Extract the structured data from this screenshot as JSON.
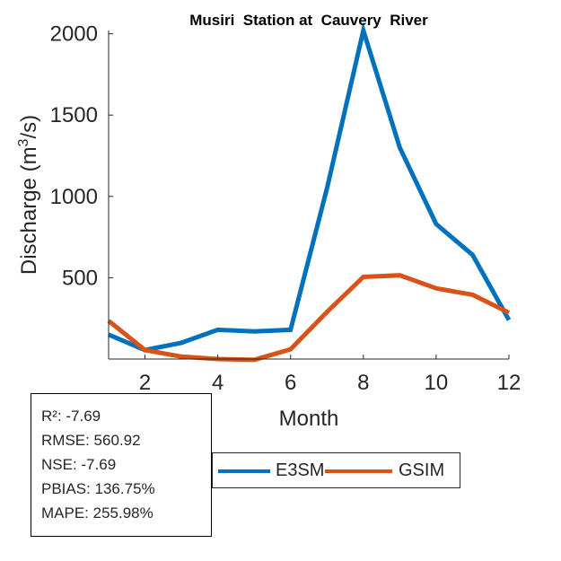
{
  "chart_data": {
    "type": "line",
    "title": "Musiri  Station at  Cauvery  River",
    "xlabel": "Month",
    "ylabel_main": "Discharge (m",
    "ylabel_sup": "3",
    "ylabel_end": "/s)",
    "xlim": [
      1,
      12
    ],
    "ylim": [
      0,
      2020
    ],
    "x": [
      1,
      2,
      3,
      4,
      5,
      6,
      7,
      8,
      9,
      10,
      11,
      12
    ],
    "xticks": [
      2,
      4,
      6,
      8,
      10,
      12
    ],
    "xtick_labels": [
      "2",
      "4",
      "6",
      "8",
      "10",
      "12"
    ],
    "yticks": [
      500,
      1000,
      1500,
      2000
    ],
    "ytick_labels": [
      "500",
      "1000",
      "1500",
      "2000"
    ],
    "series": [
      {
        "name": "E3SM",
        "color": "#0072BD",
        "values": [
          150,
          55,
          100,
          180,
          170,
          180,
          1050,
          2020,
          1300,
          830,
          640,
          240
        ]
      },
      {
        "name": "GSIM",
        "color": "#D95319",
        "values": [
          235,
          55,
          15,
          0,
          -5,
          60,
          290,
          505,
          515,
          435,
          395,
          285
        ]
      }
    ],
    "legend_position": "bottom"
  },
  "stats": [
    "R²: -7.69",
    "RMSE: 560.92",
    "NSE: -7.69",
    "PBIAS: 136.75%",
    "MAPE: 255.98%"
  ]
}
